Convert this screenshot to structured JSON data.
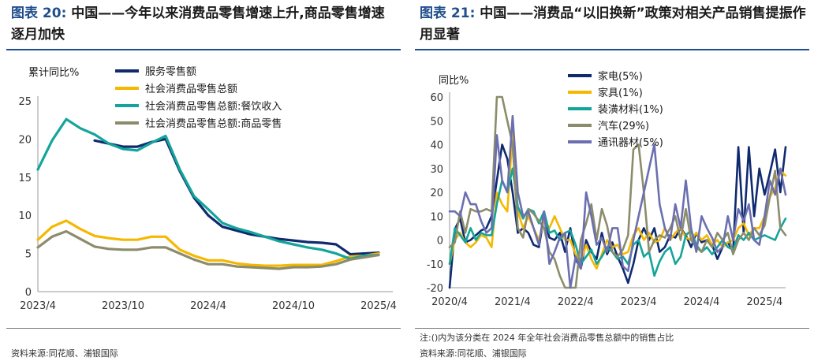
{
  "left": {
    "fig_no": "图表 20:",
    "title": "中国——今年以来消费品零售增速上升,商品零售增速逐月加快",
    "source": "资料来源:同花顺、浦银国际"
  },
  "right": {
    "fig_no": "图表 21:",
    "title": "中国——消费品“以旧换新”政策对相关产品销售提振作用显著",
    "note": "注:()内为该分类在 2024 年全年社会消费品零售总额中的销售占比",
    "source": "资料来源:同花顺、浦银国际"
  },
  "chart_data": [
    {
      "type": "line",
      "ylabel": "累计同比%",
      "ylim": [
        0,
        25
      ],
      "yticks": [
        0,
        5,
        10,
        15,
        20,
        25
      ],
      "xlim": [
        0,
        25
      ],
      "xticks": [
        {
          "x": 0,
          "label": "2023/4"
        },
        {
          "x": 6,
          "label": "2023/10"
        },
        {
          "x": 12,
          "label": "2024/4"
        },
        {
          "x": 18,
          "label": "2024/10"
        },
        {
          "x": 24,
          "label": "2025/4"
        }
      ],
      "grid": false,
      "legend": "top",
      "series": [
        {
          "name": "服务零售额",
          "color": "#0f2a6e",
          "x": [
            4,
            5,
            6,
            7,
            8,
            9,
            10,
            11,
            12,
            13,
            14,
            15,
            16,
            17,
            18,
            19,
            20,
            21,
            22,
            23,
            24
          ],
          "values": [
            19.8,
            19.4,
            19.0,
            19.0,
            19.6,
            20.0,
            15.8,
            12.3,
            10.0,
            8.5,
            8.0,
            7.5,
            7.2,
            6.9,
            6.7,
            6.5,
            6.4,
            6.2,
            4.9,
            5.0,
            5.1
          ]
        },
        {
          "name": "社会消费品零售总额",
          "color": "#f5b800",
          "x": [
            0,
            1,
            2,
            3,
            4,
            5,
            6,
            7,
            8,
            9,
            10,
            11,
            12,
            13,
            14,
            15,
            16,
            17,
            18,
            19,
            20,
            21,
            22,
            23,
            24
          ],
          "values": [
            6.8,
            8.5,
            9.3,
            8.2,
            7.3,
            7.0,
            6.8,
            6.8,
            7.2,
            7.2,
            5.5,
            4.7,
            4.1,
            4.1,
            3.7,
            3.5,
            3.4,
            3.4,
            3.5,
            3.5,
            3.5,
            4.0,
            4.6,
            4.7,
            5.0
          ]
        },
        {
          "name": "社会消费品零售总额:餐饮收入",
          "color": "#13a59b",
          "x": [
            0,
            1,
            2,
            3,
            4,
            5,
            6,
            7,
            8,
            9,
            10,
            11,
            12,
            13,
            14,
            15,
            16,
            17,
            18,
            19,
            20,
            21,
            22,
            23,
            24
          ],
          "values": [
            16.0,
            19.8,
            22.6,
            21.4,
            20.6,
            19.4,
            18.7,
            18.5,
            19.5,
            20.4,
            16.0,
            12.5,
            10.8,
            9.0,
            8.3,
            7.8,
            7.2,
            6.6,
            6.2,
            5.8,
            5.5,
            5.0,
            4.3,
            4.7,
            4.8
          ]
        },
        {
          "name": "社会消费品零售总额:商品零售",
          "color": "#8c8c6c",
          "x": [
            0,
            1,
            2,
            3,
            4,
            5,
            6,
            7,
            8,
            9,
            10,
            11,
            12,
            13,
            14,
            15,
            16,
            17,
            18,
            19,
            20,
            21,
            22,
            23,
            24
          ],
          "values": [
            5.8,
            7.2,
            7.9,
            6.9,
            5.9,
            5.6,
            5.5,
            5.5,
            5.8,
            5.8,
            5.0,
            4.2,
            3.6,
            3.6,
            3.3,
            3.2,
            3.1,
            3.0,
            3.2,
            3.2,
            3.3,
            3.6,
            4.2,
            4.5,
            4.8
          ]
        }
      ]
    },
    {
      "type": "line",
      "ylabel": "同比%",
      "ylim": [
        -20,
        60
      ],
      "yticks": [
        -20,
        -10,
        0,
        10,
        20,
        30,
        40,
        50,
        60
      ],
      "xlim": [
        0,
        64
      ],
      "xticks": [
        {
          "x": 0,
          "label": "2020/4"
        },
        {
          "x": 12,
          "label": "2021/4"
        },
        {
          "x": 24,
          "label": "2022/4"
        },
        {
          "x": 36,
          "label": "2023/4"
        },
        {
          "x": 48,
          "label": "2024/4"
        },
        {
          "x": 60,
          "label": "2025/4"
        }
      ],
      "grid": false,
      "legend": "top",
      "series": [
        {
          "name": "家电(5%)",
          "color": "#0f2a6e",
          "values": [
            -20,
            4.6,
            9.0,
            -1,
            0,
            2,
            4,
            5,
            10,
            25,
            40,
            34,
            20,
            3,
            5,
            3,
            -2,
            -3,
            10,
            1,
            0,
            3,
            -5,
            5,
            -8,
            -12,
            0,
            -5,
            -8,
            3,
            -6,
            -1,
            -7,
            -12,
            -18,
            -10,
            0,
            5,
            0,
            5,
            -5,
            -3,
            2,
            1,
            5,
            2,
            -3,
            3,
            -1,
            0,
            -2,
            -8,
            -3,
            -1,
            -5,
            39,
            3,
            39,
            10,
            30,
            19,
            28,
            38,
            20,
            39
          ]
        },
        {
          "name": "家具(1%)",
          "color": "#f5b800",
          "values": [
            -10,
            0,
            3,
            -1,
            -3,
            -1,
            2,
            1,
            -3,
            20,
            15,
            12,
            45,
            12,
            5,
            10,
            5,
            0,
            8,
            5,
            10,
            5,
            0,
            0,
            -6,
            -9,
            -2,
            -8,
            -12,
            -6,
            0,
            -3,
            -2,
            -6,
            -5,
            2,
            5,
            0,
            3,
            -1,
            0,
            5,
            0,
            3,
            5,
            1,
            0,
            3,
            0,
            2,
            -2,
            0,
            -3,
            -1,
            0,
            5,
            7,
            2,
            5,
            5,
            10,
            18,
            22,
            29,
            27
          ]
        },
        {
          "name": "装潢材料(1%)",
          "color": "#13a59b",
          "values": [
            -10,
            5,
            2,
            -1,
            5,
            0,
            3,
            2,
            2,
            15,
            25,
            20,
            30,
            14,
            9,
            13,
            12,
            7,
            12,
            3,
            4,
            0,
            3,
            4,
            -2,
            -10,
            -7,
            -4,
            -10,
            -7,
            -3,
            -5,
            -8,
            -7,
            -10,
            -2,
            0,
            -7,
            -5,
            -15,
            -9,
            -5,
            -3,
            -10,
            -7,
            2,
            4,
            -2,
            -5,
            -3,
            -6,
            -3,
            0,
            -3,
            -4,
            2,
            0,
            3,
            0,
            1,
            2,
            1,
            0,
            5,
            9
          ]
        },
        {
          "name": "汽车(29%)",
          "color": "#8c8c6c",
          "values": [
            -3,
            -1,
            12,
            3,
            13,
            12,
            12,
            13,
            12,
            60,
            70,
            50,
            40,
            5,
            1,
            13,
            11,
            8,
            5,
            -5,
            -8,
            -15,
            -25,
            -20,
            -40,
            0,
            7,
            15,
            0,
            13,
            6,
            -5,
            -7,
            -4,
            2,
            38,
            40,
            20,
            -5,
            0,
            2,
            1,
            5,
            10,
            0,
            13,
            0,
            -3,
            -5,
            0,
            -3,
            3,
            0,
            3,
            -6,
            0,
            3,
            0,
            5,
            2,
            6,
            18,
            29,
            5,
            2
          ]
        },
        {
          "name": "通讯器材(5%)",
          "color": "#6b6fb0",
          "values": [
            12,
            12,
            10,
            20,
            15,
            15,
            8,
            3,
            5,
            44,
            25,
            20,
            52,
            20,
            10,
            12,
            5,
            -2,
            12,
            -10,
            -5,
            1,
            3,
            -20,
            -7,
            -12,
            20,
            10,
            -2,
            1,
            -5,
            5,
            5,
            -11,
            -13,
            0,
            10,
            20,
            30,
            40,
            15,
            5,
            0,
            15,
            5,
            25,
            5,
            -5,
            10,
            5,
            1,
            -5,
            -3,
            10,
            0,
            13,
            8,
            15,
            0,
            -2,
            10,
            25,
            19,
            30,
            19
          ]
        }
      ]
    }
  ]
}
